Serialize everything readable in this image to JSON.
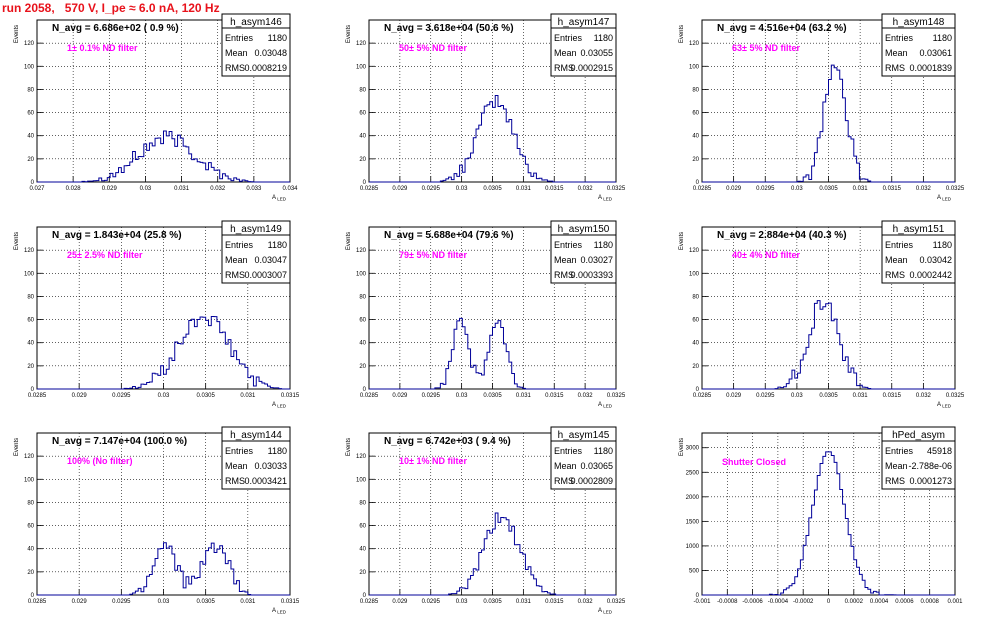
{
  "page_title": "run 2058,   570 V, I_pe ≈ 6.0 nA, 120 Hz",
  "colors": {
    "title": "#e8121b",
    "annotation": "#ff00ff",
    "histogram": "#000099",
    "grid": "#000000"
  },
  "chart_data": [
    {
      "type": "histogram",
      "name": "h_asym146",
      "title": "N_avg = 6.686e+02 ( 0.9 %)",
      "annotation": "1± 0.1% ND filter",
      "stats": [
        [
          "Entries",
          "1180"
        ],
        [
          "Mean",
          "0.03048"
        ],
        [
          "RMS",
          "0.0008219"
        ]
      ],
      "xlabel": "A_LED",
      "ylabel": "Events",
      "xlim": [
        0.027,
        0.034
      ],
      "ylim": [
        0,
        140
      ],
      "xticks": [
        "0.027",
        "0.028",
        "0.029",
        "0.03",
        "0.031",
        "0.032",
        "0.033",
        "0.034"
      ],
      "yticks": [
        "0",
        "20",
        "40",
        "60",
        "80",
        "100",
        "120"
      ],
      "grid": true,
      "peaks": [
        {
          "center": 0.0306,
          "width": 0.0008,
          "height": 38
        }
      ],
      "noise": 7
    },
    {
      "type": "histogram",
      "name": "h_asym147",
      "title": "N_avg = 3.618e+04 (50.6 %)",
      "annotation": "50± 5% ND filter",
      "stats": [
        [
          "Entries",
          "1180"
        ],
        [
          "Mean",
          "0.03055"
        ],
        [
          "RMS",
          "0.0002915"
        ]
      ],
      "xlabel": "A_LED",
      "ylabel": "Events",
      "xlim": [
        0.0285,
        0.0325
      ],
      "ylim": [
        0,
        140
      ],
      "xticks": [
        "0.0285",
        "0.029",
        "0.0295",
        "0.03",
        "0.0305",
        "0.031",
        "0.0315",
        "0.032",
        "0.0325"
      ],
      "yticks": [
        "0",
        "20",
        "40",
        "60",
        "80",
        "100",
        "120"
      ],
      "grid": true,
      "peaks": [
        {
          "center": 0.03055,
          "width": 0.00029,
          "height": 70
        }
      ],
      "noise": 6
    },
    {
      "type": "histogram",
      "name": "h_asym148",
      "title": "N_avg = 4.516e+04 (63.2 %)",
      "annotation": "63± 5% ND filter",
      "stats": [
        [
          "Entries",
          "1180"
        ],
        [
          "Mean",
          "0.03061"
        ],
        [
          "RMS",
          "0.0001839"
        ]
      ],
      "xlabel": "A_LED",
      "ylabel": "Events",
      "xlim": [
        0.0285,
        0.0325
      ],
      "ylim": [
        0,
        140
      ],
      "xticks": [
        "0.0285",
        "0.029",
        "0.0295",
        "0.03",
        "0.0305",
        "0.031",
        "0.0315",
        "0.032",
        "0.0325"
      ],
      "yticks": [
        "0",
        "20",
        "40",
        "60",
        "80",
        "100",
        "120"
      ],
      "grid": true,
      "peaks": [
        {
          "center": 0.0306,
          "width": 0.00018,
          "height": 100
        }
      ],
      "noise": 8
    },
    {
      "type": "histogram",
      "name": "h_asym149",
      "title": "N_avg = 1.843e+04 (25.8 %)",
      "annotation": "25± 2.5% ND filter",
      "stats": [
        [
          "Entries",
          "1180"
        ],
        [
          "Mean",
          "0.03047"
        ],
        [
          "RMS",
          "0.0003007"
        ]
      ],
      "xlabel": "A_LED",
      "ylabel": "Events",
      "xlim": [
        0.0285,
        0.0315
      ],
      "ylim": [
        0,
        140
      ],
      "xticks": [
        "0.0285",
        "0.029",
        "0.0295",
        "0.03",
        "0.0305",
        "0.031",
        "0.0315"
      ],
      "yticks": [
        "0",
        "20",
        "40",
        "60",
        "80",
        "100",
        "120"
      ],
      "grid": true,
      "peaks": [
        {
          "center": 0.03048,
          "width": 0.0003,
          "height": 62
        }
      ],
      "noise": 7
    },
    {
      "type": "histogram",
      "name": "h_asym150",
      "title": "N_avg = 5.688e+04 (79.6 %)",
      "annotation": "79± 5% ND filter",
      "stats": [
        [
          "Entries",
          "1180"
        ],
        [
          "Mean",
          "0.03027"
        ],
        [
          "RMS",
          "0.0003393"
        ]
      ],
      "xlabel": "A_LED",
      "ylabel": "Events",
      "xlim": [
        0.0285,
        0.0325
      ],
      "ylim": [
        0,
        140
      ],
      "xticks": [
        "0.0285",
        "0.029",
        "0.0295",
        "0.03",
        "0.0305",
        "0.031",
        "0.0315",
        "0.032",
        "0.0325"
      ],
      "yticks": [
        "0",
        "20",
        "40",
        "60",
        "80",
        "100",
        "120"
      ],
      "grid": true,
      "peaks": [
        {
          "center": 0.02998,
          "width": 0.00013,
          "height": 62
        },
        {
          "center": 0.03058,
          "width": 0.00014,
          "height": 58
        }
      ],
      "noise": 6
    },
    {
      "type": "histogram",
      "name": "h_asym151",
      "title": "N_avg = 2.884e+04 (40.3 %)",
      "annotation": "40± 4% ND filter",
      "stats": [
        [
          "Entries",
          "1180"
        ],
        [
          "Mean",
          "0.03042"
        ],
        [
          "RMS",
          "0.0002442"
        ]
      ],
      "xlabel": "A_LED",
      "ylabel": "Events",
      "xlim": [
        0.0285,
        0.0325
      ],
      "ylim": [
        0,
        140
      ],
      "xticks": [
        "0.0285",
        "0.029",
        "0.0295",
        "0.03",
        "0.0305",
        "0.031",
        "0.0315",
        "0.032",
        "0.0325"
      ],
      "yticks": [
        "0",
        "20",
        "40",
        "60",
        "80",
        "100",
        "120"
      ],
      "grid": true,
      "peaks": [
        {
          "center": 0.03042,
          "width": 0.00024,
          "height": 76
        }
      ],
      "noise": 8
    },
    {
      "type": "histogram",
      "name": "h_asym144",
      "title": "N_avg = 7.147e+04 (100.0 %)",
      "annotation": "100% (No filter)",
      "stats": [
        [
          "Entries",
          "1180"
        ],
        [
          "Mean",
          "0.03033"
        ],
        [
          "RMS",
          "0.0003421"
        ]
      ],
      "xlabel": "A_LED",
      "ylabel": "Events",
      "xlim": [
        0.0285,
        0.0315
      ],
      "ylim": [
        0,
        140
      ],
      "xticks": [
        "0.0285",
        "0.029",
        "0.0295",
        "0.03",
        "0.0305",
        "0.031",
        "0.0315"
      ],
      "yticks": [
        "0",
        "20",
        "40",
        "60",
        "80",
        "100",
        "120"
      ],
      "grid": true,
      "peaks": [
        {
          "center": 0.03002,
          "width": 0.00014,
          "height": 45
        },
        {
          "center": 0.03062,
          "width": 0.00014,
          "height": 44
        }
      ],
      "noise": 8
    },
    {
      "type": "histogram",
      "name": "h_asym145",
      "title": "N_avg = 6.742e+03 ( 9.4 %)",
      "annotation": "10± 1% ND filter",
      "stats": [
        [
          "Entries",
          "1180"
        ],
        [
          "Mean",
          "0.03065"
        ],
        [
          "RMS",
          "0.0002809"
        ]
      ],
      "xlabel": "A_LED",
      "ylabel": "Events",
      "xlim": [
        0.0285,
        0.0325
      ],
      "ylim": [
        0,
        140
      ],
      "xticks": [
        "0.0285",
        "0.029",
        "0.0295",
        "0.03",
        "0.0305",
        "0.031",
        "0.0315",
        "0.032",
        "0.0325"
      ],
      "yticks": [
        "0",
        "20",
        "40",
        "60",
        "80",
        "100",
        "120"
      ],
      "grid": true,
      "peaks": [
        {
          "center": 0.03065,
          "width": 0.00028,
          "height": 68
        }
      ],
      "noise": 6
    },
    {
      "type": "histogram",
      "name": "hPed_asym",
      "title": "",
      "annotation": "Shutter Closed",
      "stats": [
        [
          "Entries",
          "45918"
        ],
        [
          "Mean",
          "-2.788e-06"
        ],
        [
          "RMS",
          "0.0001273"
        ]
      ],
      "xlabel": "",
      "ylabel": "Events",
      "xlim": [
        -0.001,
        0.001
      ],
      "ylim": [
        0,
        3300
      ],
      "xticks": [
        "-0.001",
        "-0.0008",
        "-0.0006",
        "-0.0004",
        "-0.0002",
        "0",
        "0.0002",
        "0.0004",
        "0.0006",
        "0.0008",
        "0.001"
      ],
      "yticks": [
        "0",
        "500",
        "1000",
        "1500",
        "2000",
        "2500",
        "3000"
      ],
      "grid": true,
      "peaks": [
        {
          "center": 0.0,
          "width": 0.000127,
          "height": 2950
        }
      ],
      "noise": 40
    }
  ]
}
